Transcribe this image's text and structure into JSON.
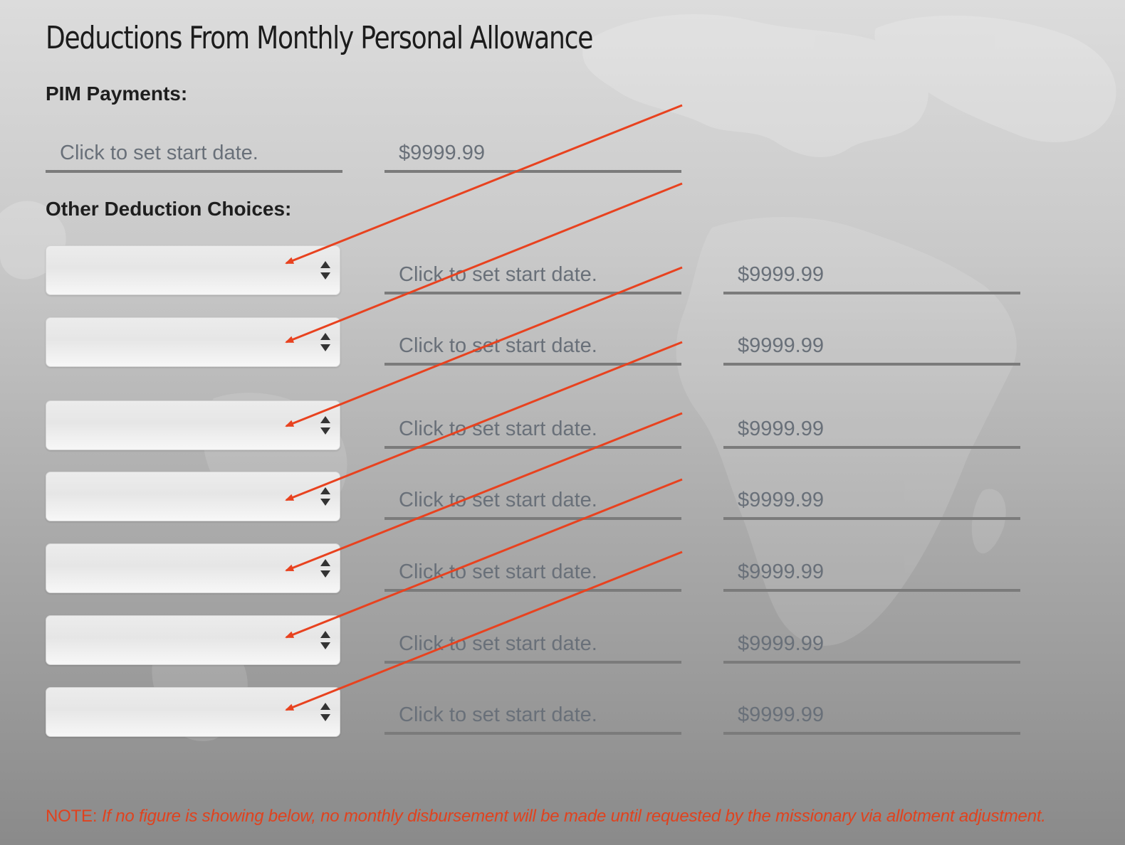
{
  "page": {
    "title": "Deductions From Monthly Personal Allowance"
  },
  "pim": {
    "label": "PIM Payments:",
    "start_date_placeholder": "Click to set start date.",
    "amount_placeholder": "$9999.99"
  },
  "other": {
    "label": "Other Deduction Choices:",
    "rows": [
      {
        "select_value": "",
        "start_date_placeholder": "Click to set start date.",
        "amount_placeholder": "$9999.99"
      },
      {
        "select_value": "",
        "start_date_placeholder": "Click to set start date.",
        "amount_placeholder": "$9999.99"
      },
      {
        "select_value": "",
        "start_date_placeholder": "Click to set start date.",
        "amount_placeholder": "$9999.99"
      },
      {
        "select_value": "",
        "start_date_placeholder": "Click to set start date.",
        "amount_placeholder": "$9999.99"
      },
      {
        "select_value": "",
        "start_date_placeholder": "Click to set start date.",
        "amount_placeholder": "$9999.99"
      },
      {
        "select_value": "",
        "start_date_placeholder": "Click to set start date.",
        "amount_placeholder": "$9999.99"
      },
      {
        "select_value": "",
        "start_date_placeholder": "Click to set start date.",
        "amount_placeholder": "$9999.99"
      }
    ]
  },
  "note": {
    "label": "NOTE:",
    "text": "If no figure is showing below, no monthly disbursement will be made until requested by the missionary via allotment adjustment."
  },
  "colors": {
    "annotation_arrow": "#e8421f",
    "note_text": "#e0421e",
    "field_text": "#697079",
    "field_underline": "#7b7b7b"
  },
  "icons": {
    "select_arrows": "up-down-chevron-icon",
    "annotation": "red-arrow-annotation"
  }
}
